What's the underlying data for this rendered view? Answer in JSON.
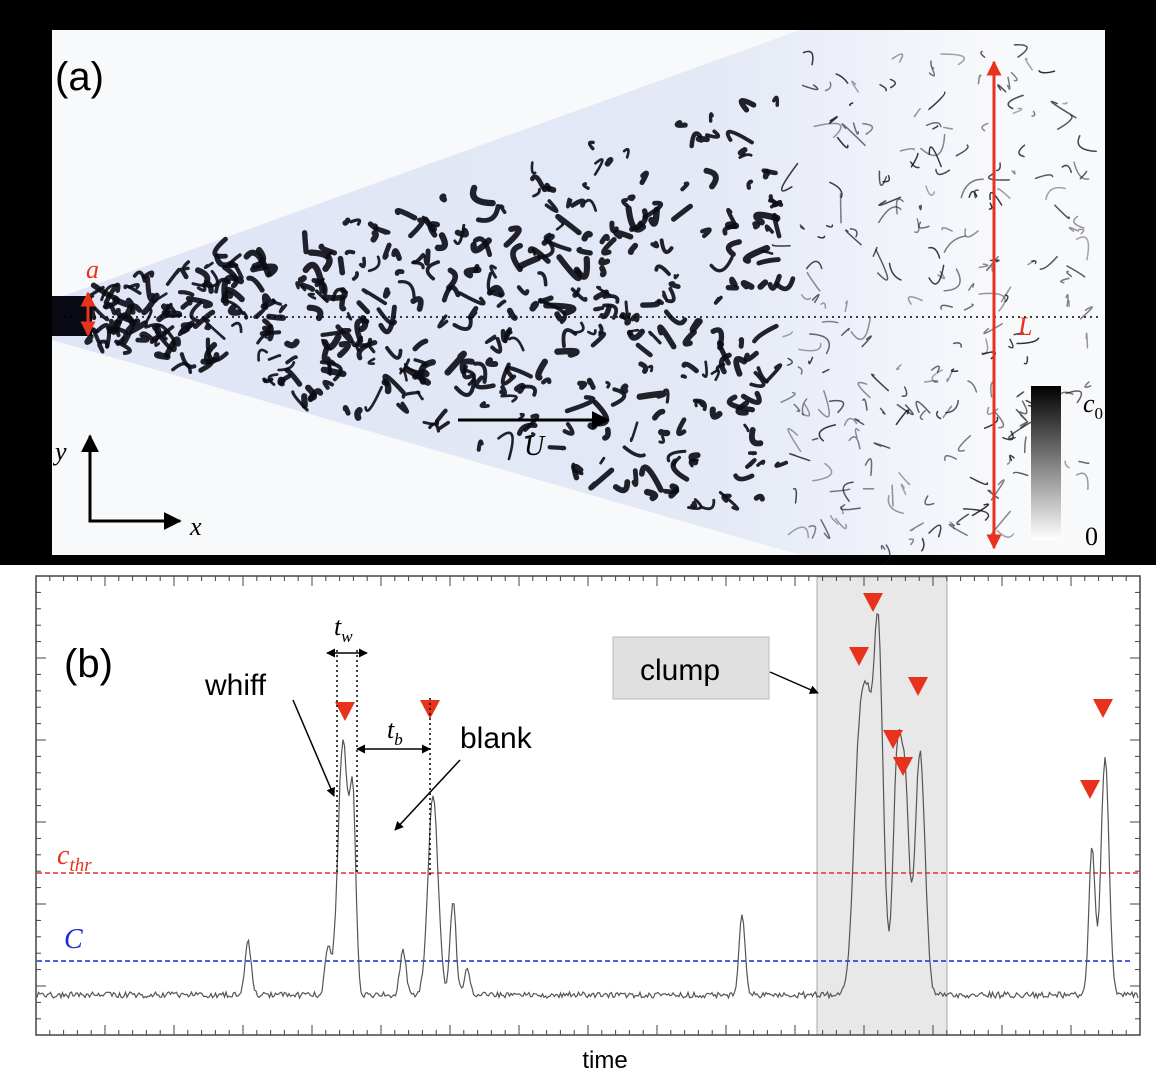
{
  "panel_a": {
    "label": "(a)",
    "source_size": "a",
    "width_label": "L",
    "y_axis": "y",
    "x_axis": "x",
    "flow": "U",
    "colorbar": {
      "top_base": "c",
      "top_sub": "0",
      "bottom": "0"
    }
  },
  "panel_b": {
    "label": "(b)",
    "tw_base": "t",
    "tw_sub": "w",
    "tb_base": "t",
    "tb_sub": "b",
    "whiff": "whiff",
    "blank": "blank",
    "clump": "clump",
    "threshold_base": "c",
    "threshold_sub": "thr",
    "mean": "C",
    "x_label": "time"
  }
}
